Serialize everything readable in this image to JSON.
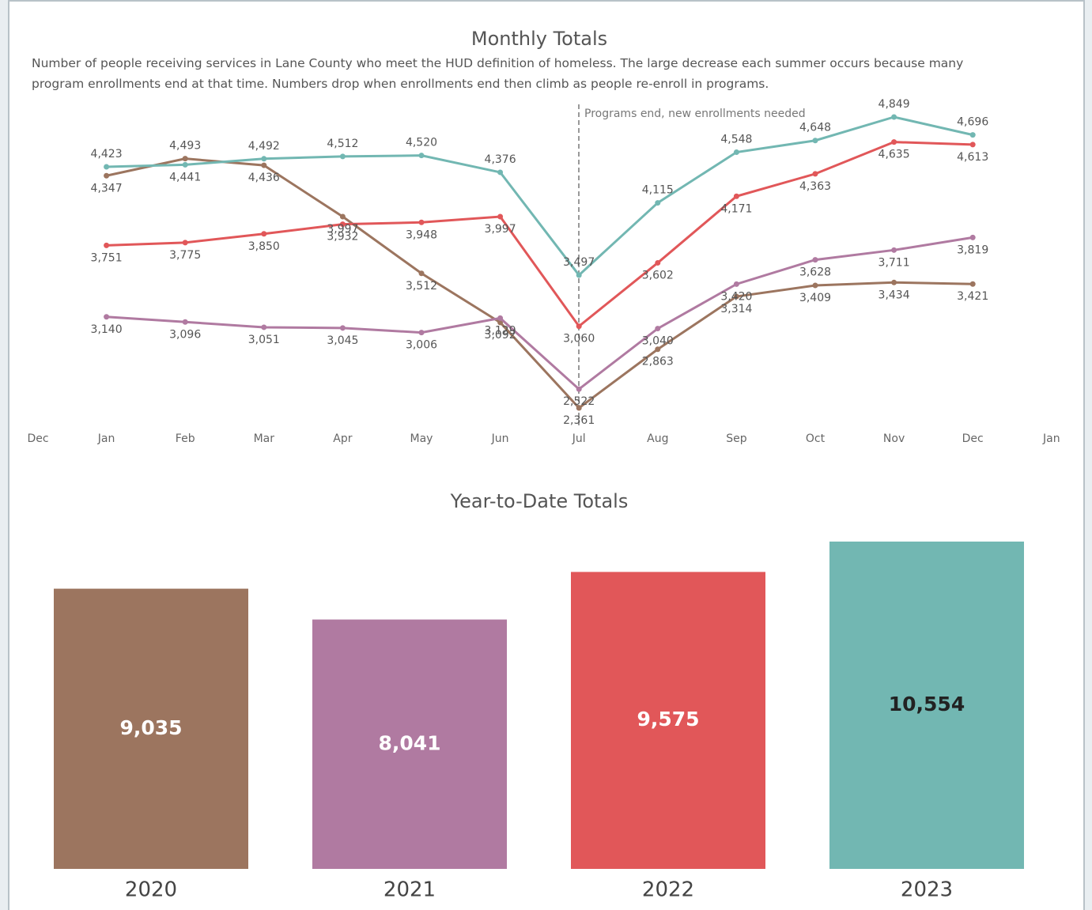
{
  "chart_data": [
    {
      "type": "line",
      "title": "Monthly Totals",
      "subtitle": "Number of people receiving services in Lane County who meet the HUD definition of homeless. The large decrease each summer occurs because many program enrollments end at that time. Numbers drop when enrollments end then climb as people re-enroll in programs.",
      "annotation": "Programs end, new enrollments needed",
      "categories": [
        "Dec",
        "Jan",
        "Feb",
        "Mar",
        "Apr",
        "May",
        "Jun",
        "Jul",
        "Aug",
        "Sep",
        "Oct",
        "Nov",
        "Dec",
        "Jan"
      ],
      "series": [
        {
          "color": "#9c755f",
          "values": [
            null,
            4347,
            4493,
            4436,
            3997,
            3512,
            3092,
            2361,
            2863,
            3314,
            3409,
            3434,
            3421,
            null
          ],
          "value_labels": [
            null,
            "4,347",
            "4,493",
            "4,436",
            "3,997",
            "3,512",
            "3,092",
            "2,361",
            "2,863",
            "3,314",
            "3,409",
            "3,434",
            "3,421",
            null
          ]
        },
        {
          "color": "#b07aa1",
          "values": [
            null,
            3140,
            3096,
            3051,
            3045,
            3006,
            3129,
            2522,
            3040,
            3420,
            3628,
            3711,
            3819,
            null
          ],
          "value_labels": [
            null,
            "3,140",
            "3,096",
            "3,051",
            "3,045",
            "3,006",
            "3,129",
            "2,522",
            "3,040",
            "3,420",
            "3,628",
            "3,711",
            "3,819",
            null
          ]
        },
        {
          "color": "#e15759",
          "values": [
            null,
            3751,
            3775,
            3850,
            3932,
            3948,
            3997,
            3060,
            3602,
            4171,
            4363,
            4635,
            4613,
            null
          ],
          "value_labels": [
            null,
            "3,751",
            "3,775",
            "3,850",
            "3,932",
            "3,948",
            "3,997",
            "3,060",
            "3,602",
            "4,171",
            "4,363",
            "4,635",
            "4,613",
            null
          ]
        },
        {
          "color": "#72b7b2",
          "values": [
            null,
            4423,
            4441,
            4492,
            4512,
            4520,
            4376,
            3497,
            4115,
            4548,
            4648,
            4849,
            4696,
            null
          ],
          "value_labels": [
            null,
            "4,423",
            "4,441",
            "4,492",
            "4,512",
            "4,520",
            "4,376",
            "3,497",
            "4,115",
            "4,548",
            "4,648",
            "4,849",
            "4,696",
            null
          ]
        }
      ]
    },
    {
      "type": "bar",
      "title": "Year-to-Date Totals",
      "categories": [
        "2020",
        "2021",
        "2022",
        "2023"
      ],
      "values": [
        9035,
        8041,
        9575,
        10554
      ],
      "value_labels": [
        "9,035",
        "8,041",
        "9,575",
        "10,554"
      ],
      "colors": [
        "#9c755f",
        "#b07aa1",
        "#e15759",
        "#72b7b2"
      ]
    }
  ]
}
